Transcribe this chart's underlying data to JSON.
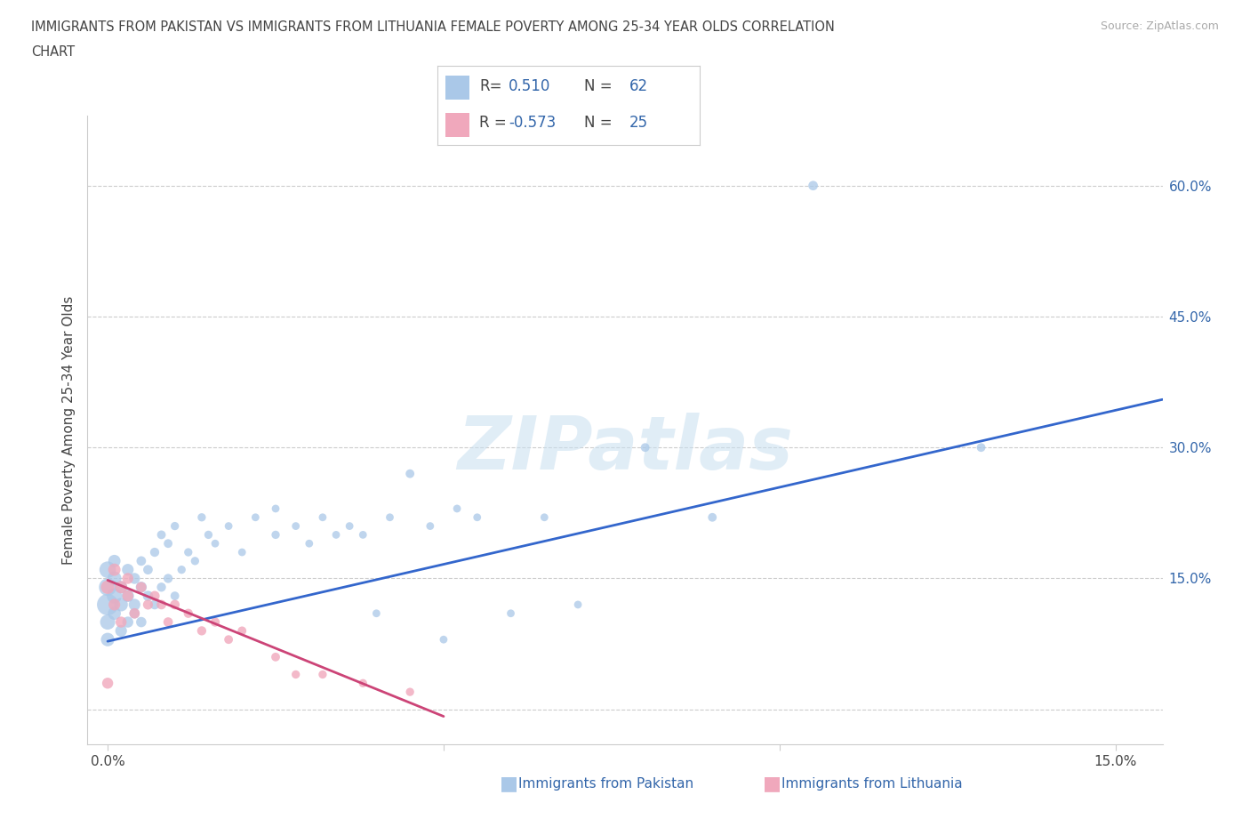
{
  "title_line1": "IMMIGRANTS FROM PAKISTAN VS IMMIGRANTS FROM LITHUANIA FEMALE POVERTY AMONG 25-34 YEAR OLDS CORRELATION",
  "title_line2": "CHART",
  "source": "Source: ZipAtlas.com",
  "ylabel": "Female Poverty Among 25-34 Year Olds",
  "pakistan_R": 0.51,
  "pakistan_N": 62,
  "lithuania_R": -0.573,
  "lithuania_N": 25,
  "pakistan_color": "#aac8e8",
  "lithuania_color": "#f0a8bc",
  "line_pakistan": "#3366cc",
  "line_lithuania": "#cc4477",
  "text_dark": "#444444",
  "text_blue": "#3366aa",
  "axis_color": "#cccccc",
  "grid_color": "#cccccc",
  "watermark": "ZIPatlas",
  "bg": "#ffffff",
  "xlim": [
    -0.003,
    0.157
  ],
  "ylim": [
    -0.04,
    0.68
  ],
  "xtick_vals": [
    0.0,
    0.05,
    0.1,
    0.15
  ],
  "xtick_labels": [
    "0.0%",
    "",
    "",
    "15.0%"
  ],
  "ytick_vals": [
    0.0,
    0.15,
    0.3,
    0.45,
    0.6
  ],
  "ytick_labels": [
    "",
    "15.0%",
    "30.0%",
    "45.0%",
    "60.0%"
  ],
  "pak_x": [
    0.0,
    0.0,
    0.0,
    0.0,
    0.0,
    0.001,
    0.001,
    0.001,
    0.001,
    0.002,
    0.002,
    0.002,
    0.003,
    0.003,
    0.003,
    0.004,
    0.004,
    0.004,
    0.005,
    0.005,
    0.005,
    0.006,
    0.006,
    0.007,
    0.007,
    0.008,
    0.008,
    0.009,
    0.009,
    0.01,
    0.01,
    0.011,
    0.012,
    0.013,
    0.014,
    0.015,
    0.016,
    0.018,
    0.02,
    0.022,
    0.025,
    0.025,
    0.028,
    0.03,
    0.032,
    0.034,
    0.036,
    0.038,
    0.04,
    0.042,
    0.045,
    0.048,
    0.05,
    0.052,
    0.055,
    0.06,
    0.065,
    0.07,
    0.08,
    0.09,
    0.105,
    0.13
  ],
  "pak_y": [
    0.12,
    0.14,
    0.16,
    0.1,
    0.08,
    0.13,
    0.15,
    0.11,
    0.17,
    0.12,
    0.14,
    0.09,
    0.13,
    0.16,
    0.1,
    0.12,
    0.15,
    0.11,
    0.14,
    0.1,
    0.17,
    0.13,
    0.16,
    0.12,
    0.18,
    0.14,
    0.2,
    0.15,
    0.19,
    0.13,
    0.21,
    0.16,
    0.18,
    0.17,
    0.22,
    0.2,
    0.19,
    0.21,
    0.18,
    0.22,
    0.2,
    0.23,
    0.21,
    0.19,
    0.22,
    0.2,
    0.21,
    0.2,
    0.11,
    0.22,
    0.27,
    0.21,
    0.08,
    0.23,
    0.22,
    0.11,
    0.22,
    0.12,
    0.3,
    0.22,
    0.6,
    0.3
  ],
  "pak_sizes": [
    300,
    200,
    180,
    150,
    120,
    150,
    130,
    110,
    100,
    120,
    100,
    90,
    100,
    90,
    80,
    90,
    80,
    70,
    80,
    70,
    60,
    70,
    60,
    60,
    55,
    55,
    50,
    55,
    50,
    50,
    45,
    45,
    45,
    45,
    45,
    45,
    40,
    40,
    40,
    40,
    45,
    40,
    40,
    40,
    40,
    40,
    40,
    40,
    40,
    40,
    50,
    40,
    40,
    40,
    40,
    40,
    40,
    40,
    50,
    50,
    60,
    50
  ],
  "lit_x": [
    0.0,
    0.0,
    0.001,
    0.001,
    0.002,
    0.002,
    0.003,
    0.003,
    0.004,
    0.005,
    0.006,
    0.007,
    0.008,
    0.009,
    0.01,
    0.012,
    0.014,
    0.016,
    0.018,
    0.02,
    0.025,
    0.028,
    0.032,
    0.038,
    0.045
  ],
  "lit_y": [
    0.03,
    0.14,
    0.16,
    0.12,
    0.14,
    0.1,
    0.13,
    0.15,
    0.11,
    0.14,
    0.12,
    0.13,
    0.12,
    0.1,
    0.12,
    0.11,
    0.09,
    0.1,
    0.08,
    0.09,
    0.06,
    0.04,
    0.04,
    0.03,
    0.02
  ],
  "lit_sizes": [
    80,
    120,
    100,
    90,
    100,
    80,
    80,
    80,
    70,
    70,
    65,
    65,
    60,
    60,
    60,
    55,
    55,
    55,
    50,
    50,
    50,
    45,
    45,
    45,
    45
  ],
  "pak_line_x0": 0.0,
  "pak_line_x1": 0.157,
  "pak_line_y0": 0.078,
  "pak_line_y1": 0.355,
  "lit_line_x0": 0.0,
  "lit_line_x1": 0.05,
  "lit_line_y0": 0.148,
  "lit_line_y1": -0.008
}
